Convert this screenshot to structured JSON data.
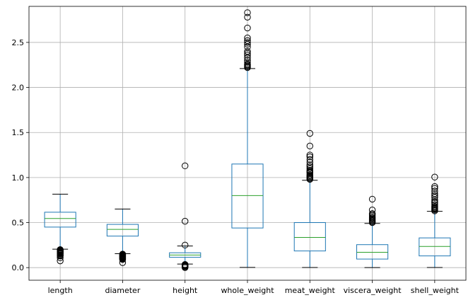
{
  "chart_data": {
    "type": "boxplot",
    "title": "",
    "xlabel": "",
    "ylabel": "",
    "ylim": [
      -0.14,
      2.9
    ],
    "yticks": [
      0.0,
      0.5,
      1.0,
      1.5,
      2.0,
      2.5
    ],
    "ytick_labels": [
      "0.0",
      "0.5",
      "1.0",
      "1.5",
      "2.0",
      "2.5"
    ],
    "grid": true,
    "colors": {
      "box": "#1f77b4",
      "median": "#2ca02c",
      "grid": "#b0b0b0",
      "axis": "#000000"
    },
    "categories": [
      "length",
      "diameter",
      "height",
      "whole_weight",
      "meat_weight",
      "viscera_weight",
      "shell_weight"
    ],
    "boxes": [
      {
        "name": "length",
        "whislo": 0.205,
        "q1": 0.45,
        "med": 0.545,
        "q3": 0.615,
        "whishi": 0.815,
        "fliers": [
          0.075,
          0.11,
          0.13,
          0.135,
          0.14,
          0.15,
          0.155,
          0.16,
          0.165,
          0.17,
          0.175,
          0.18,
          0.185,
          0.19,
          0.195,
          0.2
        ]
      },
      {
        "name": "diameter",
        "whislo": 0.155,
        "q1": 0.35,
        "med": 0.425,
        "q3": 0.48,
        "whishi": 0.65,
        "fliers": [
          0.055,
          0.09,
          0.095,
          0.1,
          0.105,
          0.11,
          0.115,
          0.12,
          0.125,
          0.13,
          0.135,
          0.14,
          0.145,
          0.15
        ]
      },
      {
        "name": "height",
        "whislo": 0.04,
        "q1": 0.115,
        "med": 0.14,
        "q3": 0.165,
        "whishi": 0.24,
        "fliers": [
          0.0,
          0.01,
          0.015,
          0.02,
          0.025,
          0.03,
          0.035,
          0.25,
          0.515,
          1.13
        ]
      },
      {
        "name": "whole_weight",
        "whislo": 0.002,
        "q1": 0.44,
        "med": 0.8,
        "q3": 1.15,
        "whishi": 2.21,
        "fliers": [
          2.22,
          2.23,
          2.24,
          2.25,
          2.26,
          2.28,
          2.3,
          2.33,
          2.36,
          2.38,
          2.4,
          2.45,
          2.48,
          2.5,
          2.52,
          2.55,
          2.66,
          2.78,
          2.83
        ]
      },
      {
        "name": "meat_weight",
        "whislo": 0.001,
        "q1": 0.185,
        "med": 0.335,
        "q3": 0.5,
        "whishi": 0.97,
        "fliers": [
          0.98,
          0.99,
          1.0,
          1.01,
          1.02,
          1.03,
          1.05,
          1.06,
          1.07,
          1.08,
          1.1,
          1.12,
          1.14,
          1.17,
          1.2,
          1.23,
          1.25,
          1.35,
          1.49
        ]
      },
      {
        "name": "viscera_weight",
        "whislo": 0.0005,
        "q1": 0.095,
        "med": 0.17,
        "q3": 0.255,
        "whishi": 0.49,
        "fliers": [
          0.5,
          0.51,
          0.52,
          0.53,
          0.54,
          0.55,
          0.56,
          0.575,
          0.59,
          0.6,
          0.64,
          0.76
        ]
      },
      {
        "name": "shell_weight",
        "whislo": 0.0015,
        "q1": 0.13,
        "med": 0.235,
        "q3": 0.33,
        "whishi": 0.625,
        "fliers": [
          0.63,
          0.64,
          0.65,
          0.66,
          0.67,
          0.68,
          0.7,
          0.72,
          0.73,
          0.75,
          0.78,
          0.8,
          0.82,
          0.85,
          0.88,
          0.9,
          1.005
        ]
      }
    ]
  }
}
